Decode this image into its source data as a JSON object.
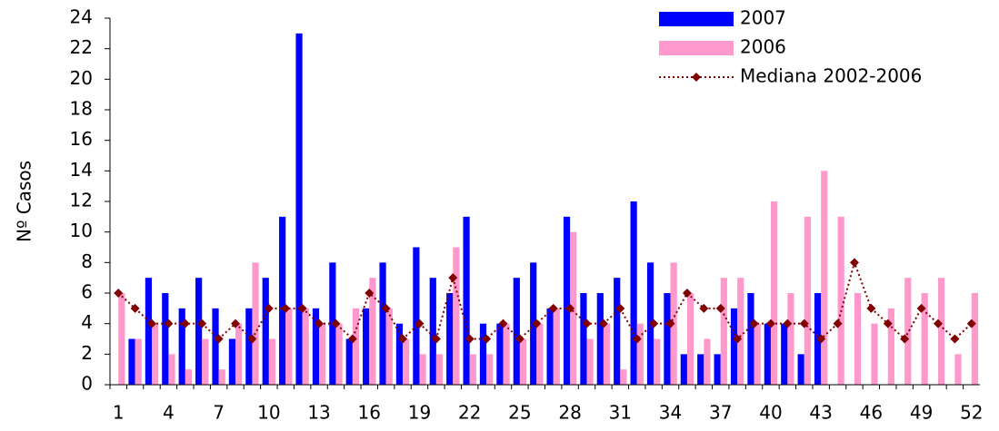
{
  "chart_data": {
    "type": "bar",
    "y_label": "Nº Casos",
    "categories": [
      1,
      null,
      null,
      4,
      null,
      null,
      7,
      null,
      null,
      10,
      null,
      null,
      13,
      null,
      null,
      16,
      null,
      null,
      19,
      null,
      null,
      22,
      null,
      null,
      25,
      null,
      null,
      28,
      null,
      null,
      31,
      null,
      null,
      34,
      null,
      null,
      37,
      null,
      null,
      40,
      null,
      null,
      43,
      null,
      null,
      46,
      null,
      null,
      49,
      null,
      null,
      52
    ],
    "series": [
      {
        "name": "2007",
        "type": "bar",
        "color": "#0000ff",
        "values": [
          null,
          3,
          7,
          6,
          5,
          7,
          5,
          3,
          5,
          7,
          11,
          23,
          5,
          8,
          3,
          5,
          8,
          4,
          9,
          7,
          6,
          11,
          4,
          4,
          7,
          8,
          5,
          11,
          6,
          6,
          7,
          12,
          8,
          6,
          2,
          2,
          2,
          5,
          6,
          4,
          4,
          2,
          6,
          null,
          null,
          null,
          null,
          null,
          null,
          null,
          null,
          null
        ]
      },
      {
        "name": "2006",
        "type": "bar",
        "color": "#ff99cc",
        "values": [
          6,
          3,
          4,
          2,
          1,
          3,
          1,
          4,
          8,
          3,
          5,
          5,
          4,
          4,
          5,
          7,
          5,
          3,
          2,
          2,
          9,
          2,
          2,
          4,
          3,
          4,
          5,
          10,
          3,
          4,
          1,
          4,
          3,
          8,
          6,
          3,
          7,
          7,
          4,
          12,
          6,
          11,
          14,
          11,
          6,
          4,
          5,
          7,
          6,
          7,
          2,
          6
        ]
      },
      {
        "name": "Mediana 2002-2006",
        "type": "line",
        "color": "#800000",
        "values": [
          6,
          5,
          4,
          4,
          4,
          4,
          3,
          4,
          3,
          5,
          5,
          5,
          4,
          4,
          3,
          6,
          5,
          3,
          4,
          3,
          7,
          3,
          3,
          4,
          3,
          4,
          5,
          5,
          4,
          4,
          5,
          3,
          4,
          4,
          6,
          5,
          5,
          3,
          4,
          4,
          4,
          4,
          3,
          4,
          8,
          5,
          4,
          3,
          5,
          4,
          3,
          4
        ]
      }
    ],
    "ylim": [
      0,
      24
    ],
    "yticks": [
      0,
      2,
      4,
      6,
      8,
      10,
      12,
      14,
      16,
      18,
      20,
      22,
      24
    ],
    "grid": false
  }
}
